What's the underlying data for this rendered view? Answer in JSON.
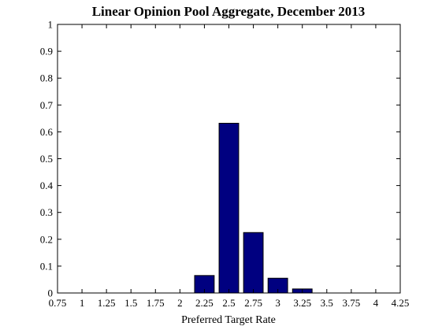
{
  "chart_data": {
    "type": "bar",
    "title": "Linear Opinion Pool Aggregate, December 2013",
    "xlabel": "Preferred Target Rate",
    "ylabel": "",
    "xlim": [
      0.75,
      4.25
    ],
    "ylim": [
      0,
      1
    ],
    "x_ticks": [
      "0.75",
      "1",
      "1.25",
      "1.5",
      "1.75",
      "2",
      "2.25",
      "2.5",
      "2.75",
      "3",
      "3.25",
      "3.5",
      "3.75",
      "4",
      "4.25"
    ],
    "y_ticks": [
      "0",
      "0.1",
      "0.2",
      "0.3",
      "0.4",
      "0.5",
      "0.6",
      "0.7",
      "0.8",
      "0.9",
      "1"
    ],
    "x": [
      2.25,
      2.5,
      2.75,
      3.0,
      3.25
    ],
    "values": [
      0.065,
      0.632,
      0.225,
      0.055,
      0.015
    ],
    "bar_width": 0.2,
    "bar_color": "#000080",
    "grid": false,
    "legend": "none"
  }
}
